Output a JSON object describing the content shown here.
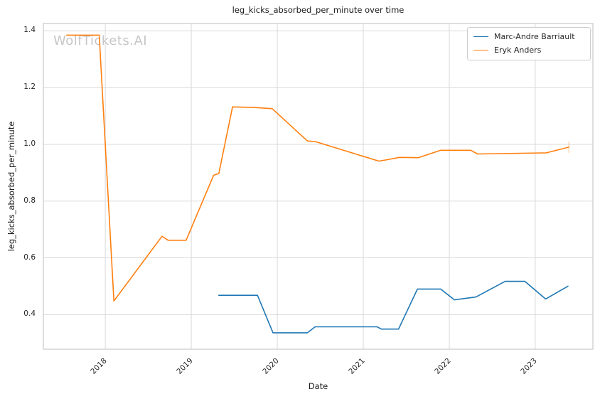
{
  "watermark": "WolfTickets.AI",
  "colors": {
    "series_blue": "#1f77b4",
    "series_orange": "#ff7f0e",
    "grid": "#d9d9d9",
    "spine": "#c8c8c8",
    "text": "#262626",
    "watermark": "#c6c6c6",
    "legend_border": "#cccccc",
    "background": "#ffffff"
  },
  "chart_data": {
    "type": "line",
    "title": "leg_kicks_absorbed_per_minute over time",
    "xlabel": "Date",
    "ylabel": "leg_kicks_absorbed_per_minute",
    "grid": true,
    "legend_position": "upper right",
    "xlim": [
      2017.28,
      2023.67
    ],
    "ylim": [
      0.278,
      1.426
    ],
    "x_ticks": [
      2018,
      2019,
      2020,
      2021,
      2022,
      2023
    ],
    "y_ticks": [
      0.4,
      0.6,
      0.8,
      1.0,
      1.2,
      1.4
    ],
    "series": [
      {
        "name": "Marc-Andre Barriault",
        "color": "#1f77b4",
        "x": [
          2019.32,
          2019.77,
          2019.95,
          2020.35,
          2020.44,
          2021.16,
          2021.21,
          2021.41,
          2021.63,
          2021.9,
          2022.06,
          2022.31,
          2022.65,
          2022.88,
          2023.12,
          2023.38
        ],
        "y": [
          0.468,
          0.468,
          0.336,
          0.336,
          0.357,
          0.357,
          0.349,
          0.349,
          0.49,
          0.49,
          0.452,
          0.462,
          0.517,
          0.517,
          0.455,
          0.5
        ]
      },
      {
        "name": "Eryk Anders",
        "color": "#ff7f0e",
        "end_tick": true,
        "x": [
          2017.55,
          2017.93,
          2018.1,
          2018.66,
          2018.73,
          2018.94,
          2019.26,
          2019.32,
          2019.48,
          2019.72,
          2019.94,
          2020.35,
          2020.44,
          2021.18,
          2021.28,
          2021.42,
          2021.64,
          2021.9,
          2022.25,
          2022.33,
          2023.13,
          2023.39
        ],
        "y": [
          1.385,
          1.385,
          0.448,
          0.676,
          0.662,
          0.662,
          0.891,
          0.897,
          1.132,
          1.13,
          1.126,
          1.012,
          1.01,
          0.941,
          0.946,
          0.954,
          0.953,
          0.979,
          0.979,
          0.966,
          0.97,
          0.99
        ]
      }
    ]
  }
}
